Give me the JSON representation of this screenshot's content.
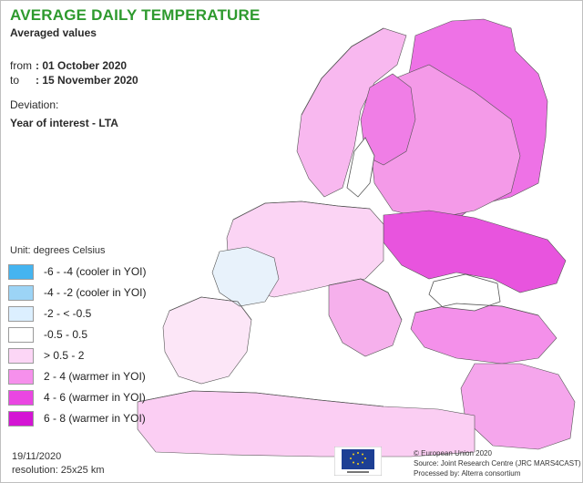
{
  "title": "AVERAGE DAILY TEMPERATURE",
  "subtitle": "Averaged values",
  "period": {
    "from_label": "from",
    "from_value": ": 01 October 2020",
    "to_label": "to",
    "to_value": ": 15 November 2020"
  },
  "deviation_label": "Deviation:",
  "deviation_desc": "Year of interest - LTA",
  "unit": "Unit: degrees Celsius",
  "legend": [
    {
      "label": "-6 - -4 (cooler in YOI)",
      "color": "#45b4f0"
    },
    {
      "label": "-4 - -2 (cooler in YOI)",
      "color": "#9cd4f6"
    },
    {
      "label": "-2 - < -0.5",
      "color": "#dcefff"
    },
    {
      "label": "-0.5 - 0.5",
      "color": "#ffffff"
    },
    {
      "label": "> 0.5 - 2",
      "color": "#fcd6f6"
    },
    {
      "label": "2 - 4 (warmer in YOI)",
      "color": "#f690ec"
    },
    {
      "label": "4 - 6 (warmer in YOI)",
      "color": "#ea46e2"
    },
    {
      "label": "6 - 8 (warmer in YOI)",
      "color": "#d414d4"
    }
  ],
  "map": {
    "sea_color": "#ffffff",
    "border_color": "#555555",
    "region_colors": {
      "russia_north": "#ee72e6",
      "russia_west": "#f49ae8",
      "ukraine_hot": "#e854de",
      "scandinavia": "#f8b8ef",
      "finland_warm": "#f07ee6",
      "central_europe": "#fbd4f4",
      "iberia": "#fce6f7",
      "france_cool": "#e8f2fb",
      "balkans": "#f6b0ec",
      "turkey": "#f490ea",
      "north_africa": "#fbcef3",
      "middle_east": "#f5a6ec"
    }
  },
  "footer": {
    "date": "19/11/2020",
    "resolution": "resolution: 25x25 km",
    "credits": [
      "© European Union 2020",
      "Source: Joint Research Centre (JRC MARS4CAST)",
      "Processed by: Alterra consortium"
    ]
  }
}
